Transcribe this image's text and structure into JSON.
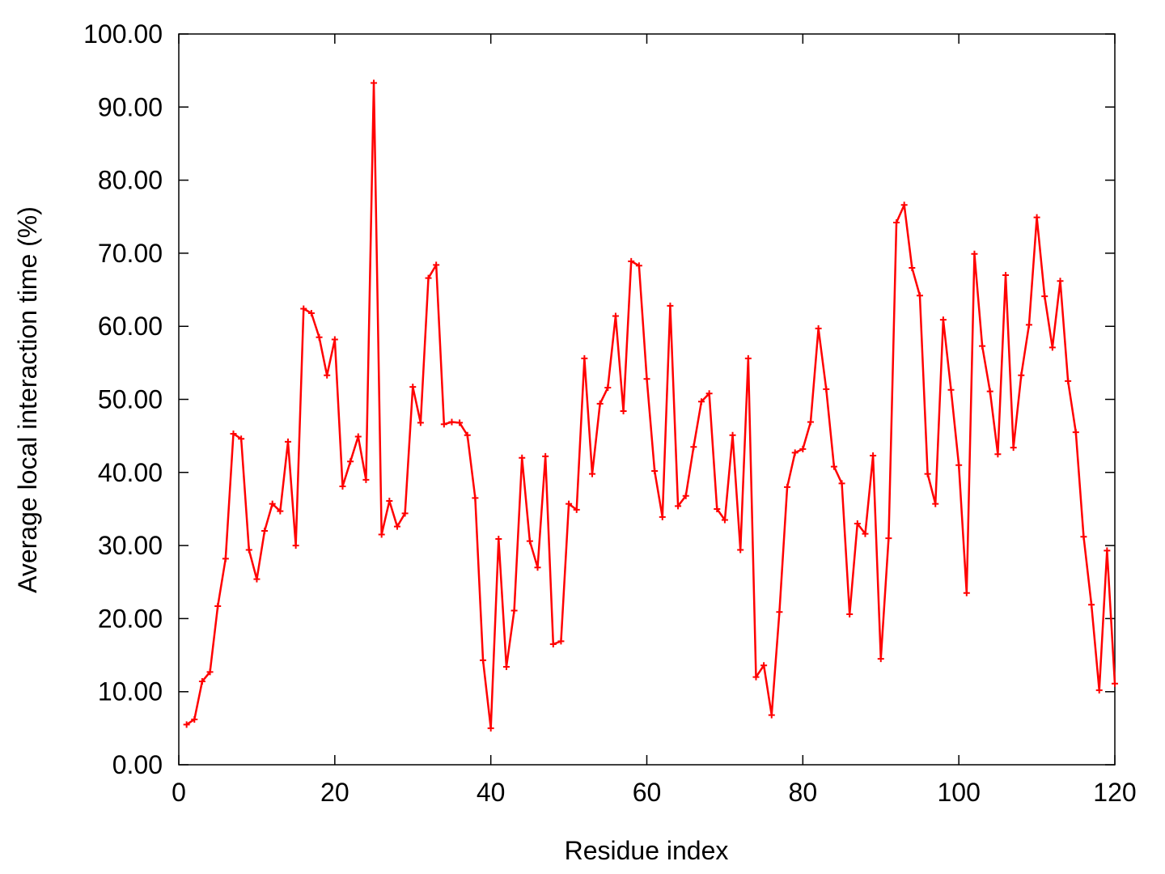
{
  "chart_data": {
    "type": "line",
    "xlabel": "Residue index",
    "ylabel": "Average local interaction time (%)",
    "xlim": [
      0,
      120
    ],
    "ylim": [
      0,
      100
    ],
    "x_ticks": [
      0,
      20,
      40,
      60,
      80,
      100,
      120
    ],
    "y_ticks": [
      0,
      10,
      20,
      30,
      40,
      50,
      60,
      70,
      80,
      90,
      100
    ],
    "x_tick_labels": [
      "0",
      "20",
      "40",
      "60",
      "80",
      "100",
      "120"
    ],
    "y_tick_labels": [
      "0.00",
      "10.00",
      "20.00",
      "30.00",
      "40.00",
      "50.00",
      "60.00",
      "70.00",
      "80.00",
      "90.00",
      "100.00"
    ],
    "grid": false,
    "series": [
      {
        "color": "#ff0000",
        "marker": "plus",
        "x": [
          1,
          2,
          3,
          4,
          5,
          6,
          7,
          8,
          9,
          10,
          11,
          12,
          13,
          14,
          15,
          16,
          17,
          18,
          19,
          20,
          21,
          22,
          23,
          24,
          25,
          26,
          27,
          28,
          29,
          30,
          31,
          32,
          33,
          34,
          35,
          36,
          37,
          38,
          39,
          40,
          41,
          42,
          43,
          44,
          45,
          46,
          47,
          48,
          49,
          50,
          51,
          52,
          53,
          54,
          55,
          56,
          57,
          58,
          59,
          60,
          61,
          62,
          63,
          64,
          65,
          66,
          67,
          68,
          69,
          70,
          71,
          72,
          73,
          74,
          75,
          76,
          77,
          78,
          79,
          80,
          81,
          82,
          83,
          84,
          85,
          86,
          87,
          88,
          89,
          90,
          91,
          92,
          93,
          94,
          95,
          96,
          97,
          98,
          99,
          100,
          101,
          102,
          103,
          104,
          105,
          106,
          107,
          108,
          109,
          110,
          111,
          112,
          113,
          114,
          115,
          116,
          117,
          118,
          119,
          120
        ],
        "values": [
          5.5,
          6.2,
          11.4,
          12.7,
          21.7,
          28.2,
          45.3,
          44.6,
          29.4,
          25.4,
          32.0,
          35.7,
          34.7,
          44.2,
          30.0,
          62.4,
          61.8,
          58.5,
          53.3,
          58.2,
          38.1,
          41.5,
          44.9,
          39.0,
          93.3,
          31.5,
          36.1,
          32.6,
          34.4,
          51.7,
          46.8,
          66.6,
          68.4,
          46.6,
          46.9,
          46.8,
          45.1,
          36.5,
          14.3,
          5.0,
          30.9,
          13.4,
          21.1,
          42.0,
          30.6,
          27.0,
          42.2,
          16.5,
          16.9,
          35.7,
          34.9,
          55.6,
          39.8,
          49.4,
          51.6,
          61.4,
          48.4,
          68.9,
          68.3,
          52.8,
          40.2,
          33.9,
          62.8,
          35.4,
          36.8,
          43.5,
          49.7,
          50.8,
          35.0,
          33.5,
          45.1,
          29.4,
          55.6,
          12.0,
          13.6,
          6.8,
          20.9,
          38.0,
          42.7,
          43.2,
          46.9,
          59.7,
          51.4,
          40.8,
          38.5,
          20.6,
          33.0,
          31.6,
          42.3,
          14.5,
          31.0,
          74.2,
          76.6,
          68.0,
          64.2,
          39.8,
          35.7,
          60.9,
          51.3,
          41.0,
          23.5,
          69.9,
          57.3,
          51.1,
          42.5,
          67.0,
          43.4,
          53.3,
          60.2,
          74.9,
          64.1,
          57.1,
          66.2,
          52.5,
          45.5,
          31.2,
          21.9,
          10.2,
          29.3,
          11.1
        ]
      }
    ]
  }
}
